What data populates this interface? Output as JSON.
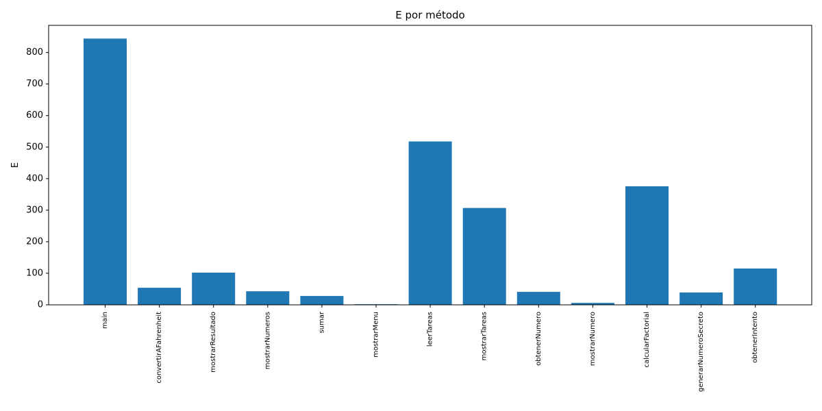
{
  "chart_data": {
    "type": "bar",
    "title": "E por método",
    "xlabel": "",
    "ylabel": "E",
    "categories": [
      "main",
      "convertirAFahrenheit",
      "mostrarResultado",
      "mostrarNumeros",
      "sumar",
      "mostrarMenu",
      "leerTareas",
      "mostrarTareas",
      "obtenerNumero",
      "mostrarNumero",
      "calcularFactorial",
      "generarNumeroSecreto",
      "obtenerIntento"
    ],
    "values": [
      844,
      54,
      102,
      43,
      28,
      2,
      518,
      307,
      41,
      6,
      376,
      39,
      115
    ],
    "ylim": [
      0,
      886
    ],
    "yticks": [
      0,
      100,
      200,
      300,
      400,
      500,
      600,
      700,
      800
    ],
    "bar_color": "#1f77b4",
    "grid": false
  }
}
